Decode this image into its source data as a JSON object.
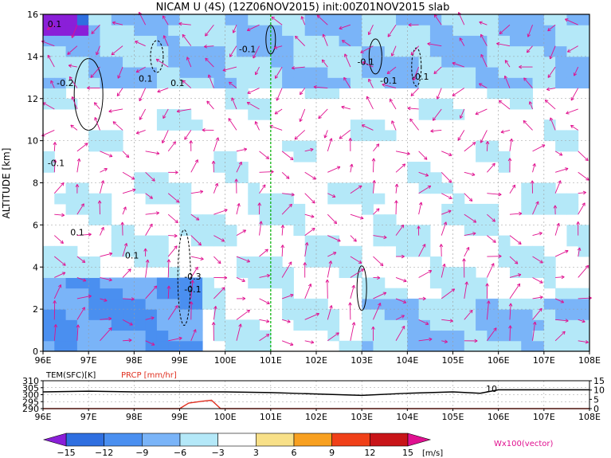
{
  "title": "NICAM U (4S) (12Z06NOV2015) init:00Z01NOV2015 slab",
  "colors": {
    "vector": "#e0108f",
    "divider": "#00b000",
    "prcp": "#e03020",
    "grid": "#9a9a9a"
  },
  "chart_data": [
    {
      "type": "heatmap",
      "title": "NICAM U (4S) (12Z06NOV2015) init:00Z01NOV2015 slab",
      "xlabel": "",
      "ylabel": "ALTITUDE [km]",
      "xlim": [
        96,
        108
      ],
      "ylim": [
        0,
        16
      ],
      "x_ticks": [
        "96E",
        "97E",
        "98E",
        "99E",
        "100E",
        "101E",
        "102E",
        "103E",
        "104E",
        "105E",
        "106E",
        "107E",
        "108E"
      ],
      "y_ticks": [
        "0",
        "2",
        "4",
        "6",
        "8",
        "10",
        "12",
        "14",
        "16"
      ],
      "grid": true,
      "shading_levels": [
        -15,
        -12,
        -9,
        -6,
        -3,
        3,
        6,
        9,
        12,
        15
      ],
      "shading_unit": "[m/s]",
      "vector_label": "Wx100(vector)",
      "vertical_line_lon": 101,
      "contour_labels": [
        "0.1",
        "-0.2",
        "0.1",
        "0.1",
        "-0.1",
        "-0.1",
        "-0.1",
        "-0.1",
        "0.1",
        "0.1",
        "-0.3",
        "-0.1",
        "-0.1"
      ],
      "regions": [
        {
          "lon": [
            96,
            108
          ],
          "alt": [
            12.5,
            16
          ],
          "value": -6
        },
        {
          "lon": [
            96,
            99.5
          ],
          "alt": [
            0,
            3.5
          ],
          "value": -9
        },
        {
          "lon": [
            103,
            108
          ],
          "alt": [
            0,
            2.5
          ],
          "value": -6
        },
        {
          "lon": [
            96,
            97
          ],
          "alt": [
            15,
            16
          ],
          "value": -15
        }
      ]
    },
    {
      "type": "line",
      "title": "",
      "xlim": [
        96,
        108
      ],
      "x_ticks": [
        "96E",
        "97E",
        "98E",
        "99E",
        "100E",
        "101E",
        "102E",
        "103E",
        "104E",
        "105E",
        "106E",
        "107E",
        "108E"
      ],
      "series": [
        {
          "name": "TEM(SFC)[K]",
          "axis": "left",
          "ylim": [
            290,
            310
          ],
          "y_ticks": [
            "290",
            "295",
            "300",
            "305",
            "310"
          ],
          "x": [
            96,
            97,
            98,
            99,
            100,
            101,
            102,
            103,
            104,
            105,
            105.6,
            106,
            107,
            108
          ],
          "y": [
            302,
            302.5,
            302,
            302,
            302,
            301.5,
            300.5,
            299.5,
            301,
            302,
            301,
            303.5,
            303.5,
            303.5
          ]
        },
        {
          "name": "PRCP [mm/hr]",
          "axis": "right",
          "ylim": [
            0,
            15
          ],
          "y_ticks": [
            "0",
            "5",
            "10",
            "15"
          ],
          "x": [
            96,
            99,
            99.2,
            99.5,
            99.7,
            99.9,
            100,
            108
          ],
          "y": [
            0,
            0,
            3,
            4,
            4.5,
            0,
            0,
            0
          ]
        }
      ],
      "annotation": "10"
    }
  ]
}
